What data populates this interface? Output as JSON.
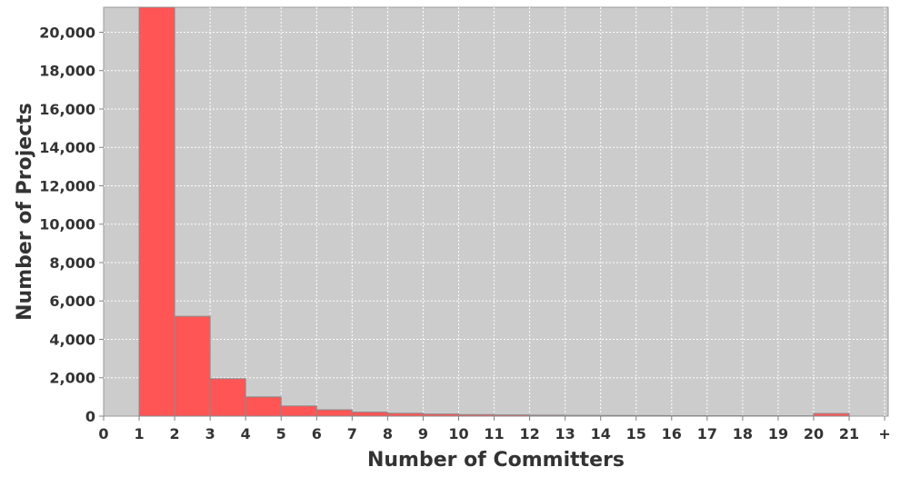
{
  "chart_data": {
    "type": "bar",
    "title": "",
    "xlabel": "Number of Committers",
    "ylabel": "Number of Projects",
    "x_tick_labels": [
      "0",
      "1",
      "2",
      "3",
      "4",
      "5",
      "6",
      "7",
      "8",
      "9",
      "10",
      "11",
      "12",
      "13",
      "14",
      "15",
      "16",
      "17",
      "18",
      "19",
      "20",
      "21",
      "+"
    ],
    "ylim": [
      0,
      21300
    ],
    "y_ticks": [
      0,
      2000,
      4000,
      6000,
      8000,
      10000,
      12000,
      14000,
      16000,
      18000,
      20000
    ],
    "y_tick_labels": [
      "0",
      "2,000",
      "4,000",
      "6,000",
      "8,000",
      "10,000",
      "12,000",
      "14,000",
      "16,000",
      "18,000",
      "20,000"
    ],
    "bins": [
      {
        "from": 1,
        "to": 2,
        "value": 21300
      },
      {
        "from": 2,
        "to": 3,
        "value": 5200
      },
      {
        "from": 3,
        "to": 4,
        "value": 1950
      },
      {
        "from": 4,
        "to": 5,
        "value": 1000
      },
      {
        "from": 5,
        "to": 6,
        "value": 530
      },
      {
        "from": 6,
        "to": 7,
        "value": 330
      },
      {
        "from": 7,
        "to": 8,
        "value": 210
      },
      {
        "from": 8,
        "to": 9,
        "value": 150
      },
      {
        "from": 9,
        "to": 10,
        "value": 110
      },
      {
        "from": 10,
        "to": 11,
        "value": 80
      },
      {
        "from": 11,
        "to": 12,
        "value": 65
      },
      {
        "from": 12,
        "to": 13,
        "value": 50
      },
      {
        "from": 13,
        "to": 14,
        "value": 40
      },
      {
        "from": 14,
        "to": 15,
        "value": 35
      },
      {
        "from": 15,
        "to": 16,
        "value": 30
      },
      {
        "from": 16,
        "to": 17,
        "value": 25
      },
      {
        "from": 17,
        "to": 18,
        "value": 22
      },
      {
        "from": 18,
        "to": 19,
        "value": 20
      },
      {
        "from": 19,
        "to": 20,
        "value": 18
      },
      {
        "from": 20,
        "to": 21,
        "value": 140
      }
    ],
    "grid": true,
    "colors": {
      "bar": "#ff5555",
      "plot_background": "#cccccc",
      "grid": "#ffffff"
    }
  }
}
